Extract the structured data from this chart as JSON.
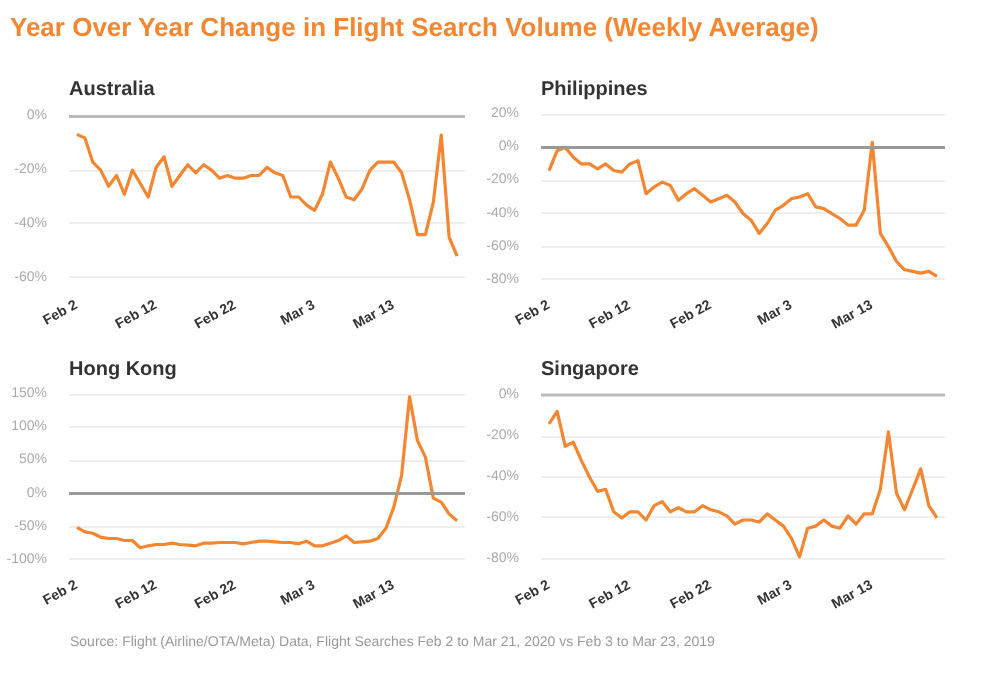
{
  "chart_data": [
    {
      "type": "other",
      "title": "Year Over Year Change in Flight Search Volume (Weekly Average)",
      "annotations": [
        "Source:  Flight (Airline/OTA/Meta) Data, Flight Searches Feb 2 to Mar 21, 2020 vs Feb 3 to Mar 23, 2019"
      ]
    },
    {
      "type": "line",
      "title": "Australia",
      "x": [
        "2020-02-02",
        "2020-02-03",
        "2020-02-04",
        "2020-02-05",
        "2020-02-06",
        "2020-02-07",
        "2020-02-08",
        "2020-02-09",
        "2020-02-10",
        "2020-02-11",
        "2020-02-12",
        "2020-02-13",
        "2020-02-14",
        "2020-02-15",
        "2020-02-16",
        "2020-02-17",
        "2020-02-18",
        "2020-02-19",
        "2020-02-20",
        "2020-02-21",
        "2020-02-22",
        "2020-02-23",
        "2020-02-24",
        "2020-02-25",
        "2020-02-26",
        "2020-02-27",
        "2020-02-28",
        "2020-02-29",
        "2020-03-01",
        "2020-03-02",
        "2020-03-03",
        "2020-03-04",
        "2020-03-05",
        "2020-03-06",
        "2020-03-07",
        "2020-03-08",
        "2020-03-09",
        "2020-03-10",
        "2020-03-11",
        "2020-03-12",
        "2020-03-13",
        "2020-03-14",
        "2020-03-15",
        "2020-03-16",
        "2020-03-17",
        "2020-03-18",
        "2020-03-19",
        "2020-03-20",
        "2020-03-21"
      ],
      "series": [
        {
          "color": "#f58631",
          "values": [
            -6.7,
            -8,
            -17,
            -20,
            -26,
            -22,
            -29,
            -20,
            -25,
            -30,
            -19,
            -15,
            -26,
            -22,
            -18,
            -21,
            -18,
            -20,
            -23,
            -22,
            -23,
            -23,
            -22,
            -22,
            -19,
            -21,
            -22,
            -30,
            -30,
            -33,
            -35,
            -29,
            -17,
            -23,
            -30,
            -31,
            -27,
            -20,
            -17,
            -17,
            -17,
            -21,
            -31,
            -44,
            -44,
            -32,
            -7,
            -45,
            -52
          ]
        }
      ],
      "xlim": [
        "2020-02-01",
        "2020-03-22"
      ],
      "xticks": [
        {
          "value": "2020-02-02",
          "label": "Feb 2"
        },
        {
          "value": "2020-02-12",
          "label": "Feb 12"
        },
        {
          "value": "2020-02-22",
          "label": "Feb 22"
        },
        {
          "value": "2020-03-03",
          "label": "Mar 3"
        },
        {
          "value": "2020-03-13",
          "label": "Mar 13"
        }
      ],
      "ylim": [
        -62,
        2
      ],
      "yticks": [
        {
          "value": -60,
          "label": "-60%"
        },
        {
          "value": -40,
          "label": "-40%"
        },
        {
          "value": -20,
          "label": "-20%"
        },
        {
          "value": 0,
          "label": "0%"
        }
      ],
      "grid": "y",
      "ref_lines": [
        {
          "axis": "y",
          "value": 0,
          "label": null,
          "color": "#bbbbbb"
        }
      ]
    },
    {
      "type": "line",
      "title": "Philippines",
      "x": [
        "2020-02-02",
        "2020-02-03",
        "2020-02-04",
        "2020-02-05",
        "2020-02-06",
        "2020-02-07",
        "2020-02-08",
        "2020-02-09",
        "2020-02-10",
        "2020-02-11",
        "2020-02-12",
        "2020-02-13",
        "2020-02-14",
        "2020-02-15",
        "2020-02-16",
        "2020-02-17",
        "2020-02-18",
        "2020-02-19",
        "2020-02-20",
        "2020-02-21",
        "2020-02-22",
        "2020-02-23",
        "2020-02-24",
        "2020-02-25",
        "2020-02-26",
        "2020-02-27",
        "2020-02-28",
        "2020-02-29",
        "2020-03-01",
        "2020-03-02",
        "2020-03-03",
        "2020-03-04",
        "2020-03-05",
        "2020-03-06",
        "2020-03-07",
        "2020-03-08",
        "2020-03-09",
        "2020-03-10",
        "2020-03-11",
        "2020-03-12",
        "2020-03-13",
        "2020-03-14",
        "2020-03-15",
        "2020-03-16",
        "2020-03-17",
        "2020-03-18",
        "2020-03-19",
        "2020-03-20",
        "2020-03-21"
      ],
      "series": [
        {
          "color": "#f58631",
          "values": [
            -14,
            -2,
            0,
            -6,
            -10,
            -10,
            -13,
            -10,
            -14,
            -15,
            -10,
            -8,
            -28,
            -24,
            -21,
            -23,
            -32,
            -28,
            -25,
            -29,
            -33,
            -31,
            -29,
            -33,
            -40,
            -44,
            -52,
            -46,
            -38,
            -35,
            -31,
            -30,
            -28,
            -36,
            -37,
            -40,
            -43,
            -47,
            -47,
            -38,
            3,
            -52,
            -60,
            -69,
            -74,
            -75,
            -76,
            -75,
            -78
          ]
        }
      ],
      "xlim": [
        "2020-02-01",
        "2020-03-22"
      ],
      "xticks": [
        {
          "value": "2020-02-02",
          "label": "Feb 2"
        },
        {
          "value": "2020-02-12",
          "label": "Feb 12"
        },
        {
          "value": "2020-02-22",
          "label": "Feb 22"
        },
        {
          "value": "2020-03-03",
          "label": "Mar 3"
        },
        {
          "value": "2020-03-13",
          "label": "Mar 13"
        }
      ],
      "ylim": [
        -82,
        22
      ],
      "yticks": [
        {
          "value": -80,
          "label": "-80%"
        },
        {
          "value": -60,
          "label": "-60%"
        },
        {
          "value": -40,
          "label": "-40%"
        },
        {
          "value": -20,
          "label": "-20%"
        },
        {
          "value": 0,
          "label": "0%"
        },
        {
          "value": 20,
          "label": "20%"
        }
      ],
      "grid": "y",
      "ref_lines": [
        {
          "axis": "y",
          "value": 0,
          "label": null,
          "color": "#999999"
        }
      ]
    },
    {
      "type": "line",
      "title": "Hong Kong",
      "x": [
        "2020-02-02",
        "2020-02-03",
        "2020-02-04",
        "2020-02-05",
        "2020-02-06",
        "2020-02-07",
        "2020-02-08",
        "2020-02-09",
        "2020-02-10",
        "2020-02-11",
        "2020-02-12",
        "2020-02-13",
        "2020-02-14",
        "2020-02-15",
        "2020-02-16",
        "2020-02-17",
        "2020-02-18",
        "2020-02-19",
        "2020-02-20",
        "2020-02-21",
        "2020-02-22",
        "2020-02-23",
        "2020-02-24",
        "2020-02-25",
        "2020-02-26",
        "2020-02-27",
        "2020-02-28",
        "2020-02-29",
        "2020-03-01",
        "2020-03-02",
        "2020-03-03",
        "2020-03-04",
        "2020-03-05",
        "2020-03-06",
        "2020-03-07",
        "2020-03-08",
        "2020-03-09",
        "2020-03-10",
        "2020-03-11",
        "2020-03-12",
        "2020-03-13",
        "2020-03-14",
        "2020-03-15",
        "2020-03-16",
        "2020-03-17",
        "2020-03-18",
        "2020-03-19",
        "2020-03-20",
        "2020-03-21"
      ],
      "series": [
        {
          "color": "#f58631",
          "values": [
            -51,
            -58,
            -60,
            -66,
            -68,
            -68,
            -71,
            -71,
            -82,
            -79,
            -77,
            -77,
            -75,
            -77,
            -78,
            -79,
            -75,
            -75,
            -74,
            -74,
            -74,
            -76,
            -74,
            -72,
            -72,
            -73,
            -74,
            -74,
            -76,
            -72,
            -79,
            -79,
            -75,
            -71,
            -64,
            -74,
            -73,
            -72,
            -68,
            -53,
            -21,
            28,
            146,
            80,
            55,
            -7,
            -13,
            -31,
            -41
          ]
        }
      ],
      "xlim": [
        "2020-02-01",
        "2020-03-22"
      ],
      "xticks": [
        {
          "value": "2020-02-02",
          "label": "Feb 2"
        },
        {
          "value": "2020-02-12",
          "label": "Feb 12"
        },
        {
          "value": "2020-02-22",
          "label": "Feb 22"
        },
        {
          "value": "2020-03-03",
          "label": "Mar 3"
        },
        {
          "value": "2020-03-13",
          "label": "Mar 13"
        }
      ],
      "ylim": [
        -105,
        155
      ],
      "yticks": [
        {
          "value": -100,
          "label": "-100%"
        },
        {
          "value": -50,
          "label": "-50%"
        },
        {
          "value": 0,
          "label": "0%"
        },
        {
          "value": 50,
          "label": "50%"
        },
        {
          "value": 100,
          "label": "100%"
        },
        {
          "value": 150,
          "label": "150%"
        }
      ],
      "grid": "y",
      "ref_lines": [
        {
          "axis": "y",
          "value": 0,
          "label": null,
          "color": "#999999"
        }
      ]
    },
    {
      "type": "line",
      "title": "Singapore",
      "x": [
        "2020-02-02",
        "2020-02-03",
        "2020-02-04",
        "2020-02-05",
        "2020-02-06",
        "2020-02-07",
        "2020-02-08",
        "2020-02-09",
        "2020-02-10",
        "2020-02-11",
        "2020-02-12",
        "2020-02-13",
        "2020-02-14",
        "2020-02-15",
        "2020-02-16",
        "2020-02-17",
        "2020-02-18",
        "2020-02-19",
        "2020-02-20",
        "2020-02-21",
        "2020-02-22",
        "2020-02-23",
        "2020-02-24",
        "2020-02-25",
        "2020-02-26",
        "2020-02-27",
        "2020-02-28",
        "2020-02-29",
        "2020-03-01",
        "2020-03-02",
        "2020-03-03",
        "2020-03-04",
        "2020-03-05",
        "2020-03-06",
        "2020-03-07",
        "2020-03-08",
        "2020-03-09",
        "2020-03-10",
        "2020-03-11",
        "2020-03-12",
        "2020-03-13",
        "2020-03-14",
        "2020-03-15",
        "2020-03-16",
        "2020-03-17",
        "2020-03-18",
        "2020-03-19",
        "2020-03-20",
        "2020-03-21"
      ],
      "series": [
        {
          "color": "#f58631",
          "values": [
            -14,
            -8,
            -25,
            -23,
            -32,
            -40,
            -47,
            -46,
            -57,
            -60,
            -57,
            -57,
            -61,
            -54,
            -52,
            -57,
            -55,
            -57,
            -57,
            -54,
            -56,
            -57,
            -59,
            -63,
            -61,
            -61,
            -62,
            -58,
            -61,
            -64,
            -70,
            -79,
            -65,
            -64,
            -61,
            -64,
            -65,
            -59,
            -63,
            -58,
            -58,
            -46,
            -18,
            -48,
            -56,
            -46,
            -36,
            -54,
            -60
          ]
        }
      ],
      "xlim": [
        "2020-02-01",
        "2020-03-22"
      ],
      "xticks": [
        {
          "value": "2020-02-02",
          "label": "Feb 2"
        },
        {
          "value": "2020-02-12",
          "label": "Feb 12"
        },
        {
          "value": "2020-02-22",
          "label": "Feb 22"
        },
        {
          "value": "2020-03-03",
          "label": "Mar 3"
        },
        {
          "value": "2020-03-13",
          "label": "Mar 13"
        }
      ],
      "ylim": [
        -82,
        2
      ],
      "yticks": [
        {
          "value": -80,
          "label": "-80%"
        },
        {
          "value": -60,
          "label": "-60%"
        },
        {
          "value": -40,
          "label": "-40%"
        },
        {
          "value": -20,
          "label": "-20%"
        },
        {
          "value": 0,
          "label": "0%"
        }
      ],
      "grid": "y",
      "ref_lines": [
        {
          "axis": "y",
          "value": 0,
          "label": null,
          "color": "#bbbbbb"
        }
      ]
    }
  ]
}
